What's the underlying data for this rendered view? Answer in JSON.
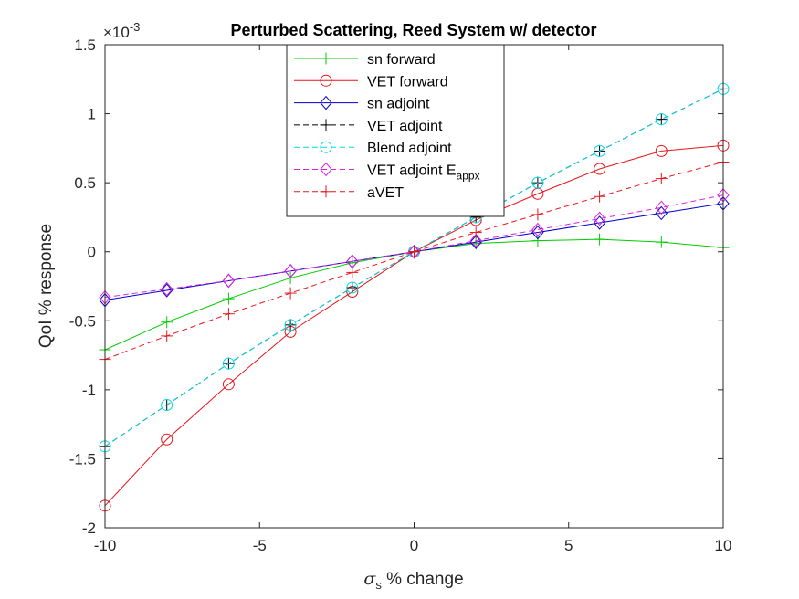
{
  "chart_data": {
    "type": "line",
    "title": "Perturbed Scattering, Reed System w/ detector",
    "xlabel": {
      "symbol": "σ",
      "subscript": "s",
      "rest": " % change"
    },
    "ylabel": "QoI % response",
    "y_exponent_label": {
      "base": "×10",
      "exp": "-3"
    },
    "xlim": [
      -10,
      10
    ],
    "ylim": [
      -2,
      1.5
    ],
    "xticks": [
      "-10",
      "-5",
      "0",
      "5",
      "10"
    ],
    "yticks": [
      "-2",
      "-1.5",
      "-1",
      "-0.5",
      "0",
      "0.5",
      "1",
      "1.5"
    ],
    "grid": false,
    "legend_position": "top-center",
    "x": [
      -10,
      -8,
      -6,
      -4,
      -2,
      0,
      2,
      4,
      6,
      8,
      10
    ],
    "series": [
      {
        "name": "sn forward",
        "legend_main": "sn forward",
        "legend_sub": "",
        "color": "#00cc00",
        "dash": "solid",
        "marker": "plus",
        "values": [
          -0.71,
          -0.51,
          -0.34,
          -0.19,
          -0.08,
          0.0,
          0.06,
          0.08,
          0.09,
          0.07,
          0.03
        ]
      },
      {
        "name": "VET forward",
        "legend_main": "VET forward",
        "legend_sub": "",
        "color": "#e8151b",
        "dash": "solid",
        "marker": "circle",
        "values": [
          -1.84,
          -1.36,
          -0.96,
          -0.58,
          -0.29,
          0.0,
          0.23,
          0.42,
          0.6,
          0.73,
          0.77
        ]
      },
      {
        "name": "sn adjoint",
        "legend_main": "sn adjoint",
        "legend_sub": "",
        "color": "#0000cc",
        "dash": "solid",
        "marker": "diamond",
        "values": [
          -0.35,
          -0.28,
          -0.21,
          -0.14,
          -0.07,
          0.0,
          0.07,
          0.14,
          0.21,
          0.28,
          0.35
        ]
      },
      {
        "name": "VET adjoint",
        "legend_main": "VET adjoint",
        "legend_sub": "",
        "color": "#000000",
        "dash": "dashed",
        "marker": "plus",
        "values": [
          -1.41,
          -1.11,
          -0.81,
          -0.53,
          -0.26,
          0.0,
          0.25,
          0.5,
          0.73,
          0.96,
          1.18
        ]
      },
      {
        "name": "Blend adjoint",
        "legend_main": "Blend adjoint",
        "legend_sub": "",
        "color": "#00d8e8",
        "dash": "dashed",
        "marker": "circle",
        "values": [
          -1.41,
          -1.11,
          -0.81,
          -0.53,
          -0.26,
          0.0,
          0.25,
          0.5,
          0.73,
          0.96,
          1.18
        ]
      },
      {
        "name": "VET adjoint E_appx",
        "legend_main": "VET adjoint E",
        "legend_sub": "appx",
        "color": "#e020e0",
        "dash": "dashed",
        "marker": "diamond",
        "values": [
          -0.33,
          -0.27,
          -0.21,
          -0.14,
          -0.07,
          0.0,
          0.08,
          0.16,
          0.24,
          0.32,
          0.41
        ]
      },
      {
        "name": "aVET",
        "legend_main": "aVET",
        "legend_sub": "",
        "color": "#e8151b",
        "dash": "dashed",
        "marker": "plus",
        "values": [
          -0.78,
          -0.61,
          -0.45,
          -0.3,
          -0.15,
          0.0,
          0.14,
          0.27,
          0.4,
          0.53,
          0.65
        ]
      }
    ]
  }
}
